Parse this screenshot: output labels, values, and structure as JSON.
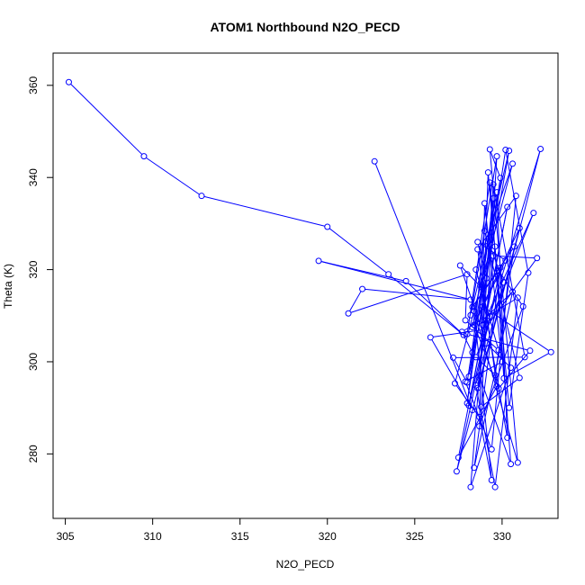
{
  "chart_data": {
    "type": "line",
    "title": "ATOM1 Northbound N2O_PECD",
    "xlabel": "N2O_PECD",
    "ylabel": "Theta (K)",
    "xlim": [
      304.3,
      333.2
    ],
    "ylim": [
      266.0,
      367.0
    ],
    "xticks": [
      305,
      310,
      315,
      320,
      325,
      330
    ],
    "yticks": [
      280,
      300,
      320,
      340,
      360
    ],
    "ytick_rotation": "vertical",
    "grid": false,
    "legend": "none",
    "series": [
      {
        "color": "#0000ff",
        "marker": "open-circle",
        "x": [
          305.2,
          309.5,
          312.8,
          320.0,
          323.5,
          327.8,
          324.5,
          319.5,
          328.2,
          322.0,
          321.2,
          328.0,
          327.9,
          329.8,
          328.5,
          330.6,
          327.3,
          328.7,
          329.4,
          328.4,
          330.9,
          329.3,
          329.9,
          328.1,
          328.9,
          332.8,
          330.1,
          329.6,
          328.6,
          331.0,
          328.3,
          329.7,
          330.3,
          328.8,
          327.6,
          329.1,
          330.5,
          328.2,
          329.5,
          328.0,
          330.2,
          331.5,
          330.4,
          329.2,
          328.9,
          331.8,
          328.5,
          329.6,
          330.7,
          328.3,
          329.8,
          331.2,
          328.7,
          329.0,
          330.0,
          327.9,
          329.4,
          330.8,
          328.6,
          329.7,
          327.5,
          330.3,
          328.1,
          329.3,
          332.2,
          327.4,
          329.9,
          328.4,
          330.6,
          328.9,
          329.5,
          331.3,
          327.2,
          328.0,
          329.2,
          330.1,
          328.5,
          329.6,
          330.9,
          327.7,
          328.3,
          329.0,
          331.0,
          328.8,
          329.7,
          328.2,
          330.4,
          329.1,
          328.6,
          330.2,
          328.4,
          329.8,
          331.6,
          328.0,
          329.3,
          330.5,
          328.7,
          329.5,
          332.0,
          329.0,
          325.9,
          328.3,
          322.7
        ],
        "y": [
          360.7,
          344.6,
          336.0,
          329.3,
          319.0,
          305.8,
          317.5,
          321.9,
          313.5,
          315.8,
          310.5,
          319.0,
          309.0,
          302.5,
          320.0,
          343.0,
          295.3,
          288.0,
          274.3,
          311.0,
          278.1,
          346.1,
          339.9,
          296.8,
          312.0,
          302.1,
          296.4,
          325.0,
          294.3,
          329.0,
          307.5,
          336.8,
          283.5,
          316.2,
          320.9,
          304.0,
          298.7,
          272.8,
          335.5,
          291.0,
          346.0,
          319.3,
          290.0,
          341.1,
          308.0,
          332.3,
          301.0,
          297.1,
          325.0,
          311.9,
          319.8,
          312.0,
          286.0,
          334.4,
          300.0,
          295.7,
          281.0,
          336.0,
          324.4,
          294.7,
          279.2,
          333.6,
          290.5,
          309.9,
          346.2,
          276.2,
          320.4,
          277.0,
          315.2,
          309.0,
          338.5,
          301.0,
          300.9,
          295.5,
          326.1,
          317.2,
          294.9,
          272.8,
          313.9,
          306.5,
          302.0,
          328.4,
          296.5,
          290.2,
          344.6,
          310.1,
          345.8,
          318.1,
          326.0,
          322.0,
          308.0,
          294.2,
          302.4,
          306.0,
          338.9,
          277.8,
          297.0,
          323.0,
          322.5,
          307.0,
          305.3,
          289.5,
          343.5
        ]
      }
    ]
  }
}
